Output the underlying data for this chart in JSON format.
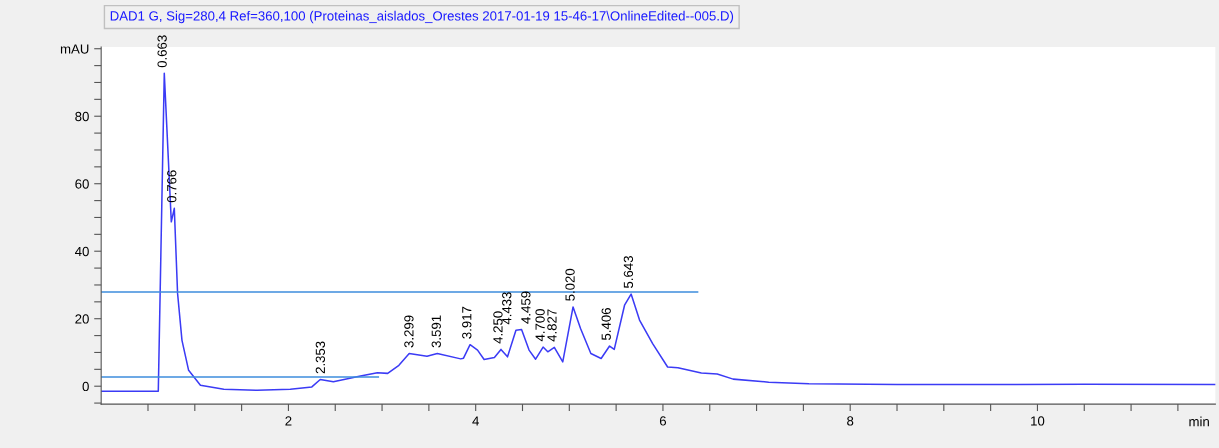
{
  "chart_data": {
    "type": "line",
    "title": "DAD1 G, Sig=280,4 Ref=360,100 (Proteinas_aislados_Orestes 2017-01-19 15-46-17\\OnlineEdited--005.D)",
    "xlabel": "min",
    "series": [
      {
        "color": "#3b3bf5",
        "x": [
          0,
          0.61,
          0.674,
          0.749,
          0.781,
          0.816,
          0.863,
          0.934,
          1.06,
          1.31,
          1.665,
          2.02,
          2.25,
          2.34,
          2.48,
          2.77,
          2.95,
          3.06,
          3.18,
          3.29,
          3.48,
          3.59,
          3.84,
          3.87,
          3.94,
          4.02,
          4.09,
          4.2,
          4.27,
          4.34,
          4.43,
          4.49,
          4.57,
          4.64,
          4.72,
          4.77,
          4.84,
          4.93,
          5.04,
          5.12,
          5.23,
          5.34,
          5.43,
          5.48,
          5.59,
          5.66,
          5.75,
          5.89,
          6.05,
          6.16,
          6.41,
          6.58,
          6.75,
          7.13,
          7.56,
          8.5,
          9.5,
          10.5,
          11.9
        ],
        "values": [
          -1.5,
          -1.5,
          92.7,
          48.7,
          52.7,
          27.5,
          13.6,
          4.7,
          0.3,
          -0.9,
          -1.2,
          -0.9,
          -0.2,
          2.0,
          1.3,
          3.0,
          4.0,
          3.8,
          6.2,
          9.7,
          8.9,
          9.7,
          8.1,
          8.3,
          12.3,
          10.7,
          7.9,
          8.5,
          10.9,
          8.7,
          16.6,
          16.8,
          10.7,
          8.0,
          11.6,
          10.2,
          11.5,
          7.2,
          23.5,
          17.1,
          9.7,
          8.2,
          11.9,
          10.9,
          24.0,
          27.3,
          19.6,
          12.6,
          5.7,
          5.5,
          3.9,
          3.6,
          2.1,
          1.2,
          0.7,
          0.5,
          0.5,
          0.6,
          0.5
        ]
      },
      {
        "color": "#3c8ddc",
        "x": [
          0,
          6.37
        ],
        "values": [
          27.9,
          27.9
        ]
      },
      {
        "color": "#3c8ddc",
        "x": [
          0,
          2.96
        ],
        "values": [
          2.7,
          2.7
        ]
      }
    ],
    "annotations": [
      {
        "text": "0.663",
        "x": 0.663,
        "y": 92.7
      },
      {
        "text": "0.766",
        "x": 0.766,
        "y": 52.7
      },
      {
        "text": "2.353",
        "x": 2.353,
        "y": 2.0
      },
      {
        "text": "3.299",
        "x": 3.299,
        "y": 9.7
      },
      {
        "text": "3.591",
        "x": 3.591,
        "y": 9.7
      },
      {
        "text": "3.917",
        "x": 3.917,
        "y": 12.3
      },
      {
        "text": "4.250",
        "x": 4.25,
        "y": 10.9
      },
      {
        "text": "4.433",
        "x": 4.433,
        "y": 16.6
      },
      {
        "text": "4.459",
        "x": 4.459,
        "y": 16.8
      },
      {
        "text": "4.700",
        "x": 4.7,
        "y": 11.6
      },
      {
        "text": "4.827",
        "x": 4.827,
        "y": 11.5
      },
      {
        "text": "5.020",
        "x": 5.02,
        "y": 23.5
      },
      {
        "text": "5.406",
        "x": 5.406,
        "y": 11.9
      },
      {
        "text": "5.643",
        "x": 5.643,
        "y": 27.3
      }
    ],
    "xlim": [
      0,
      11.9
    ],
    "ylim": [
      -5.3,
      100.5
    ],
    "xticks": [
      {
        "value": 0.5,
        "label": null
      },
      {
        "value": 1,
        "label": null
      },
      {
        "value": 1.5,
        "label": null
      },
      2,
      {
        "value": 2.5,
        "label": null
      },
      {
        "value": 3,
        "label": null
      },
      {
        "value": 3.5,
        "label": null
      },
      4,
      {
        "value": 4.5,
        "label": null
      },
      {
        "value": 5,
        "label": null
      },
      {
        "value": 5.5,
        "label": null
      },
      6,
      {
        "value": 6.5,
        "label": null
      },
      {
        "value": 7,
        "label": null
      },
      {
        "value": 7.5,
        "label": null
      },
      8,
      {
        "value": 8.5,
        "label": null
      },
      {
        "value": 9,
        "label": null
      },
      {
        "value": 9.5,
        "label": null
      },
      10,
      {
        "value": 10.5,
        "label": null
      },
      {
        "value": 11,
        "label": null
      },
      {
        "value": 11.5,
        "label": null
      }
    ],
    "yticks": [
      {
        "value": -5,
        "label": null
      },
      0,
      {
        "value": 5,
        "label": null
      },
      {
        "value": 10,
        "label": null
      },
      {
        "value": 15,
        "label": null
      },
      20,
      {
        "value": 25,
        "label": null
      },
      {
        "value": 30,
        "label": null
      },
      {
        "value": 35,
        "label": null
      },
      40,
      {
        "value": 45,
        "label": null
      },
      {
        "value": 50,
        "label": null
      },
      {
        "value": 55,
        "label": null
      },
      60,
      {
        "value": 65,
        "label": null
      },
      {
        "value": 70,
        "label": null
      },
      {
        "value": 75,
        "label": null
      },
      80,
      {
        "value": 85,
        "label": null
      },
      {
        "value": 90,
        "label": null
      },
      {
        "value": 95,
        "label": null
      },
      {
        "value": 100,
        "label": "mAU"
      }
    ],
    "grid": false,
    "legend": false,
    "marker": "none",
    "line_style": "solid"
  }
}
